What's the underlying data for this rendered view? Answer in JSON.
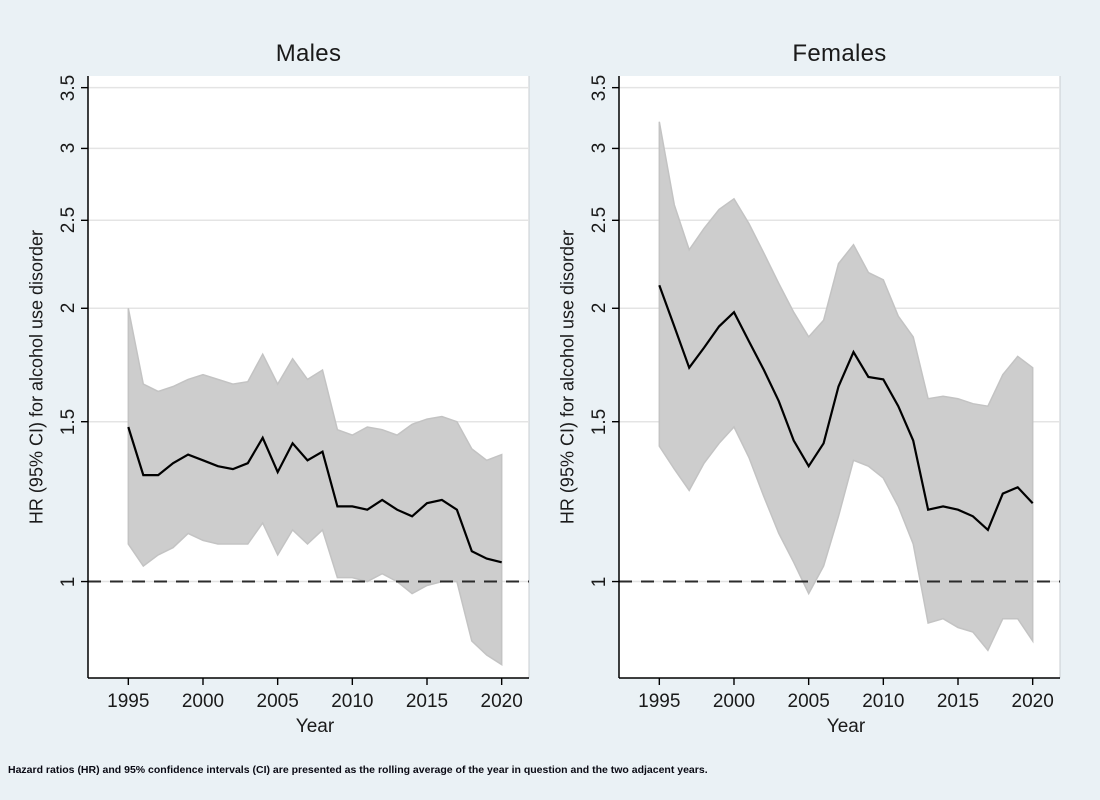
{
  "figure": {
    "footnote": "Hazard ratios (HR) and 95% confidence intervals (CI) are presented as the rolling average of the year in question and the two adjacent years.",
    "background_color": "#eaf1f5",
    "plot_background": "#ffffff",
    "band_fill_color": "#cdcdcd",
    "band_edge_color": "#c3c3c3",
    "line_color": "#000000",
    "grid_color": "#e4e4e4",
    "axis_color": "#000000",
    "reference_line_color": "#2b2b2b",
    "reference_line_value": 1
  },
  "axes": {
    "ylabel": "HR (95% CI) for alcohol use disorder",
    "xlabel": "Year",
    "y_scale": "log",
    "y_ticks": [
      1,
      1.5,
      2,
      2.5,
      3,
      3.5
    ],
    "x_ticks": [
      1995,
      2000,
      2005,
      2010,
      2015,
      2020
    ],
    "y_range": [
      0.783,
      3.605
    ],
    "x_range": [
      1992.3,
      2021.83
    ],
    "grid": "horizontal-only",
    "legend": "none"
  },
  "chart_data": {
    "type": "line",
    "x": [
      1995,
      1996,
      1997,
      1998,
      1999,
      2000,
      2001,
      2002,
      2003,
      2004,
      2005,
      2006,
      2007,
      2008,
      2009,
      2010,
      2011,
      2012,
      2013,
      2014,
      2015,
      2016,
      2017,
      2018,
      2019,
      2020
    ],
    "panels": [
      {
        "title": "Males",
        "series": [
          {
            "name": "HR",
            "values": [
              1.48,
              1.31,
              1.31,
              1.35,
              1.38,
              1.36,
              1.34,
              1.33,
              1.35,
              1.44,
              1.32,
              1.42,
              1.36,
              1.39,
              1.21,
              1.21,
              1.2,
              1.23,
              1.2,
              1.18,
              1.22,
              1.23,
              1.2,
              1.08,
              1.06,
              1.05
            ]
          },
          {
            "name": "CI upper",
            "values": [
              2.0,
              1.65,
              1.62,
              1.64,
              1.67,
              1.69,
              1.67,
              1.65,
              1.66,
              1.78,
              1.65,
              1.76,
              1.67,
              1.71,
              1.47,
              1.45,
              1.48,
              1.47,
              1.45,
              1.49,
              1.51,
              1.52,
              1.5,
              1.4,
              1.36,
              1.38
            ]
          },
          {
            "name": "CI lower",
            "values": [
              1.1,
              1.04,
              1.07,
              1.09,
              1.13,
              1.11,
              1.1,
              1.1,
              1.1,
              1.16,
              1.07,
              1.14,
              1.1,
              1.14,
              1.01,
              1.01,
              1.0,
              1.02,
              1.0,
              0.97,
              0.99,
              1.0,
              1.0,
              0.86,
              0.83,
              0.81
            ]
          }
        ]
      },
      {
        "title": "Females",
        "series": [
          {
            "name": "HR",
            "values": [
              2.12,
              1.91,
              1.72,
              1.81,
              1.91,
              1.98,
              1.84,
              1.71,
              1.58,
              1.43,
              1.34,
              1.42,
              1.64,
              1.79,
              1.68,
              1.67,
              1.56,
              1.43,
              1.2,
              1.21,
              1.2,
              1.18,
              1.14,
              1.25,
              1.27,
              1.22
            ]
          },
          {
            "name": "CI upper",
            "values": [
              3.21,
              2.6,
              2.32,
              2.45,
              2.57,
              2.64,
              2.48,
              2.3,
              2.13,
              1.98,
              1.86,
              1.94,
              2.24,
              2.35,
              2.19,
              2.15,
              1.96,
              1.86,
              1.59,
              1.6,
              1.59,
              1.57,
              1.56,
              1.69,
              1.77,
              1.72
            ]
          },
          {
            "name": "CI lower",
            "values": [
              1.41,
              1.33,
              1.26,
              1.35,
              1.42,
              1.48,
              1.37,
              1.24,
              1.13,
              1.05,
              0.97,
              1.04,
              1.18,
              1.36,
              1.34,
              1.3,
              1.21,
              1.1,
              0.9,
              0.91,
              0.89,
              0.88,
              0.84,
              0.91,
              0.91,
              0.86
            ]
          }
        ]
      }
    ]
  }
}
